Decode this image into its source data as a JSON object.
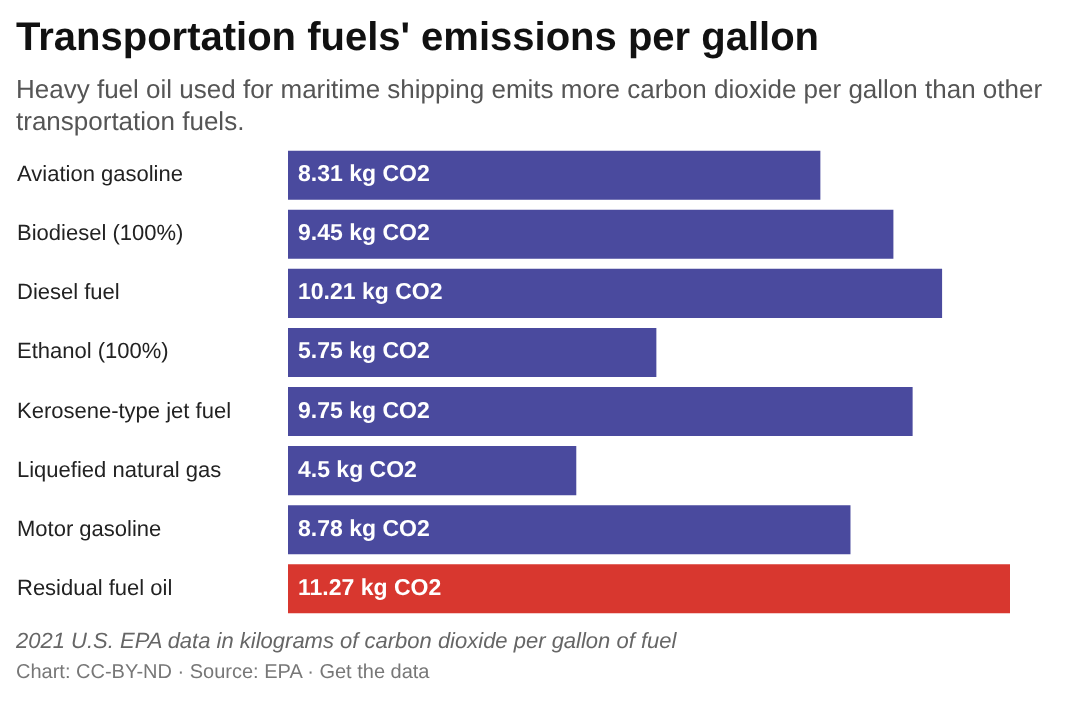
{
  "chart_data": {
    "type": "bar",
    "orientation": "horizontal",
    "title": "Transportation fuels' emissions per gallon",
    "subtitle": "Heavy fuel oil used for maritime shipping emits more carbon dioxide per gallon than other transportation fuels.",
    "categories": [
      "Aviation gasoline",
      "Biodiesel (100%)",
      "Diesel fuel",
      "Ethanol (100%)",
      "Kerosene-type jet fuel",
      "Liquefied natural gas",
      "Motor gasoline",
      "Residual fuel oil"
    ],
    "values": [
      8.31,
      9.45,
      10.21,
      5.75,
      9.75,
      4.5,
      8.78,
      11.27
    ],
    "value_labels": [
      "8.31 kg CO2",
      "9.45 kg CO2",
      "10.21 kg CO2",
      "5.75 kg CO2",
      "9.75 kg CO2",
      "4.5 kg CO2",
      "8.78 kg CO2",
      "11.27 kg CO2"
    ],
    "colors": [
      "#4a4a9e",
      "#4a4a9e",
      "#4a4a9e",
      "#4a4a9e",
      "#4a4a9e",
      "#4a4a9e",
      "#4a4a9e",
      "#d8372f"
    ],
    "annotations": [
      "2021 U.S. EPA data in kilograms of carbon dioxide per gallon of fuel",
      "Chart: CC-BY-ND · Source: EPA · Get the data"
    ],
    "grid": false
  }
}
